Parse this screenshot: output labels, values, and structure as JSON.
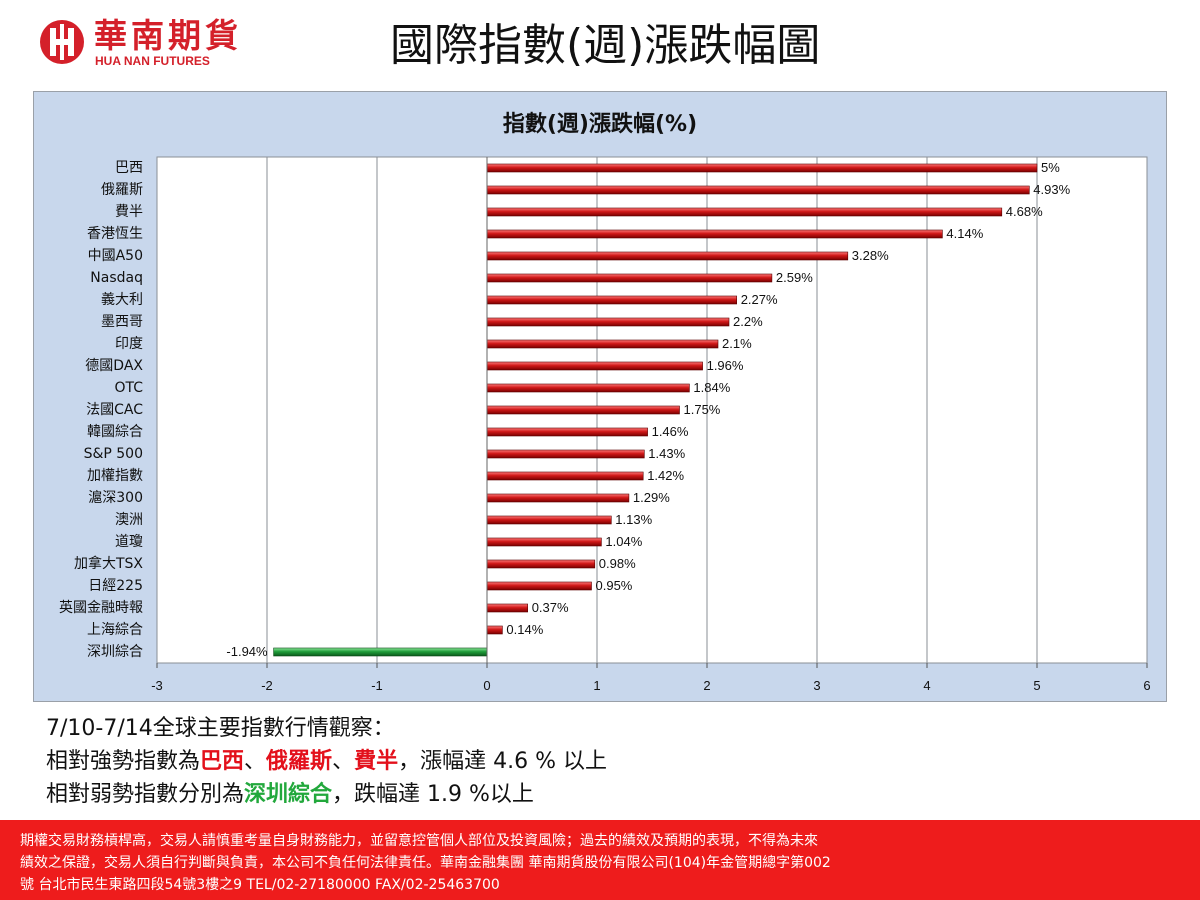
{
  "brand": {
    "name_zh": "華南期貨",
    "name_en": "HUA NAN FUTURES",
    "logo_color": "#d4202a"
  },
  "page_title": "國際指數(週)漲跌幅圖",
  "chart_data": {
    "type": "bar",
    "orientation": "horizontal",
    "title": "指數(週)漲跌幅(%)",
    "categories": [
      "巴西",
      "俄羅斯",
      "費半",
      "香港恆生",
      "中國A50",
      "Nasdaq",
      "義大利",
      "墨西哥",
      "印度",
      "德國DAX",
      "OTC",
      "法國CAC",
      "韓國綜合",
      "S&P 500",
      "加權指數",
      "滬深300",
      "澳洲",
      "道瓊",
      "加拿大TSX",
      "日經225",
      "英國金融時報",
      "上海綜合",
      "深圳綜合"
    ],
    "values": [
      5,
      4.93,
      4.68,
      4.14,
      3.28,
      2.59,
      2.27,
      2.2,
      2.1,
      1.96,
      1.84,
      1.75,
      1.46,
      1.43,
      1.42,
      1.29,
      1.13,
      1.04,
      0.98,
      0.95,
      0.37,
      0.14,
      -1.94
    ],
    "value_labels": [
      "5%",
      "4.93%",
      "4.68%",
      "4.14%",
      "3.28%",
      "2.59%",
      "2.27%",
      "2.2%",
      "2.1%",
      "1.96%",
      "1.84%",
      "1.75%",
      "1.46%",
      "1.43%",
      "1.42%",
      "1.29%",
      "1.13%",
      "1.04%",
      "0.98%",
      "0.95%",
      "0.37%",
      "0.14%",
      "-1.94%"
    ],
    "xlim": [
      -3,
      6
    ],
    "xticks": [
      -3,
      -2,
      -1,
      0,
      1,
      2,
      3,
      4,
      5,
      6
    ],
    "grid": "vertical",
    "positive_color": "#d01818",
    "negative_color": "#1f9e3a",
    "background_color": "#c8d7ec",
    "plot_area_color": "#ffffff"
  },
  "notes": {
    "line1": "7/10-7/14全球主要指數行情觀察：",
    "line2": {
      "prefix": "相對強勢指數為",
      "item1": "巴西",
      "sep1": "、",
      "item2": "俄羅斯",
      "sep2": "、",
      "item3": "費半",
      "suffix": "，漲幅達  4.6 % 以上"
    },
    "line3": {
      "prefix": "相對弱勢指數分別為",
      "item1": "深圳綜合",
      "suffix": "，跌幅達 1.9 %以上"
    },
    "strong_color": "#e3101b",
    "weak_color": "#22a83c"
  },
  "disclaimer": {
    "line1": "期權交易財務槓桿高，交易人請慎重考量自身財務能力，並留意控管個人部位及投資風險；過去的績效及預期的表現，不得為未來",
    "line2": "績效之保證，交易人須自行判斷與負責，本公司不負任何法律責任。華南金融集團 華南期貨股份有限公司(104)年金管期總字第002",
    "line3": "號  台北市民生東路四段54號3樓之9  TEL/02-27180000  FAX/02-25463700",
    "background_color": "#ee1c1c"
  }
}
